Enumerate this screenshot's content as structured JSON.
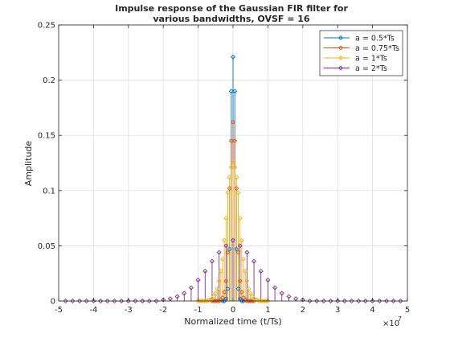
{
  "chart_data": {
    "type": "stem",
    "title": [
      "Impulse response of the Gaussian FIR filter for",
      "various bandwidths, OVSF = 16"
    ],
    "xlabel": "Normalized time (t/Ts)",
    "ylabel": "Amplitude",
    "x_exponent": "×10",
    "x_exponent_power": "7",
    "xlim": [
      -5,
      5
    ],
    "ylim": [
      0,
      0.25
    ],
    "x_ticks": [
      -5,
      -4,
      -3,
      -2,
      -1,
      0,
      1,
      2,
      3,
      4,
      5
    ],
    "x_tick_labels": [
      "-5",
      "-4",
      "-3",
      "-2",
      "-1",
      "0",
      "1",
      "2",
      "3",
      "4",
      "5"
    ],
    "y_ticks": [
      0,
      0.05,
      0.1,
      0.15,
      0.2,
      0.25
    ],
    "y_tick_labels": [
      "0",
      "0.05",
      "0.1",
      "0.15",
      "0.2",
      "0.25"
    ],
    "grid": true,
    "legend_position": "top-right",
    "series": [
      {
        "name": "a = 0.5*Ts",
        "color": "#0072BD",
        "a": 0.5,
        "half_span": 0.3,
        "x": [
          -0.3,
          -0.25,
          -0.2,
          -0.15,
          -0.1,
          -0.05,
          0,
          0.05,
          0.1,
          0.15,
          0.2,
          0.25,
          0.3
        ],
        "y": [
          0.0,
          0.0,
          0.002,
          0.011,
          0.047,
          0.19,
          0.221,
          0.19,
          0.047,
          0.011,
          0.002,
          0.0,
          0.0
        ]
      },
      {
        "name": "a = 0.75*Ts",
        "color": "#D95319",
        "a": 0.75,
        "half_span": 0.6,
        "x": [
          -0.6,
          -0.55,
          -0.5,
          -0.45,
          -0.4,
          -0.35,
          -0.3,
          -0.25,
          -0.2,
          -0.15,
          -0.1,
          -0.05,
          0,
          0.05,
          0.1,
          0.15,
          0.2,
          0.25,
          0.3,
          0.35,
          0.4,
          0.45,
          0.5,
          0.55,
          0.6
        ],
        "y": [
          0.0,
          0.0,
          0.0,
          0.0,
          0.0,
          0.001,
          0.003,
          0.008,
          0.018,
          0.044,
          0.102,
          0.145,
          0.162,
          0.145,
          0.102,
          0.044,
          0.018,
          0.008,
          0.003,
          0.001,
          0.0,
          0.0,
          0.0,
          0.0,
          0.0
        ]
      },
      {
        "name": "a = 1*Ts",
        "color": "#EDB120",
        "a": 1.0,
        "half_span": 1.0,
        "x": [
          -1.0,
          -0.95,
          -0.9,
          -0.85,
          -0.8,
          -0.75,
          -0.7,
          -0.65,
          -0.6,
          -0.55,
          -0.5,
          -0.45,
          -0.4,
          -0.35,
          -0.3,
          -0.25,
          -0.2,
          -0.15,
          -0.1,
          -0.05,
          0,
          0.05,
          0.1,
          0.15,
          0.2,
          0.25,
          0.3,
          0.35,
          0.4,
          0.45,
          0.5,
          0.55,
          0.6,
          0.65,
          0.7,
          0.75,
          0.8,
          0.85,
          0.9,
          0.95,
          1.0
        ],
        "y": [
          0.0,
          0.0,
          0.0,
          0.0,
          0.0,
          0.0,
          0.001,
          0.001,
          0.002,
          0.004,
          0.007,
          0.011,
          0.018,
          0.027,
          0.038,
          0.055,
          0.075,
          0.098,
          0.112,
          0.121,
          0.125,
          0.121,
          0.112,
          0.098,
          0.075,
          0.055,
          0.038,
          0.027,
          0.018,
          0.011,
          0.007,
          0.004,
          0.002,
          0.001,
          0.001,
          0.0,
          0.0,
          0.0,
          0.0,
          0.0,
          0.0
        ]
      },
      {
        "name": "a = 2*Ts",
        "color": "#7E2F8E",
        "a": 2.0,
        "half_span": 4.8,
        "x": [
          -4.8,
          -4.6,
          -4.4,
          -4.2,
          -4.0,
          -3.8,
          -3.6,
          -3.4,
          -3.2,
          -3.0,
          -2.8,
          -2.6,
          -2.4,
          -2.2,
          -2.0,
          -1.8,
          -1.6,
          -1.4,
          -1.2,
          -1.0,
          -0.8,
          -0.6,
          -0.4,
          -0.2,
          0,
          0.2,
          0.4,
          0.6,
          0.8,
          1.0,
          1.2,
          1.4,
          1.6,
          1.8,
          2.0,
          2.2,
          2.4,
          2.6,
          2.8,
          3.0,
          3.2,
          3.4,
          3.6,
          3.8,
          4.0,
          4.2,
          4.4,
          4.6,
          4.8
        ],
        "y": [
          0.0,
          0.0,
          0.0,
          0.0,
          0.0,
          0.0,
          0.0,
          0.0,
          0.0,
          0.0,
          0.0,
          0.0,
          0.0,
          0.0,
          0.001,
          0.002,
          0.004,
          0.007,
          0.012,
          0.019,
          0.027,
          0.036,
          0.044,
          0.05,
          0.055,
          0.05,
          0.044,
          0.036,
          0.027,
          0.019,
          0.012,
          0.007,
          0.004,
          0.002,
          0.001,
          0.0,
          0.0,
          0.0,
          0.0,
          0.0,
          0.0,
          0.0,
          0.0,
          0.0,
          0.0,
          0.0,
          0.0,
          0.0,
          0.0
        ]
      }
    ]
  }
}
